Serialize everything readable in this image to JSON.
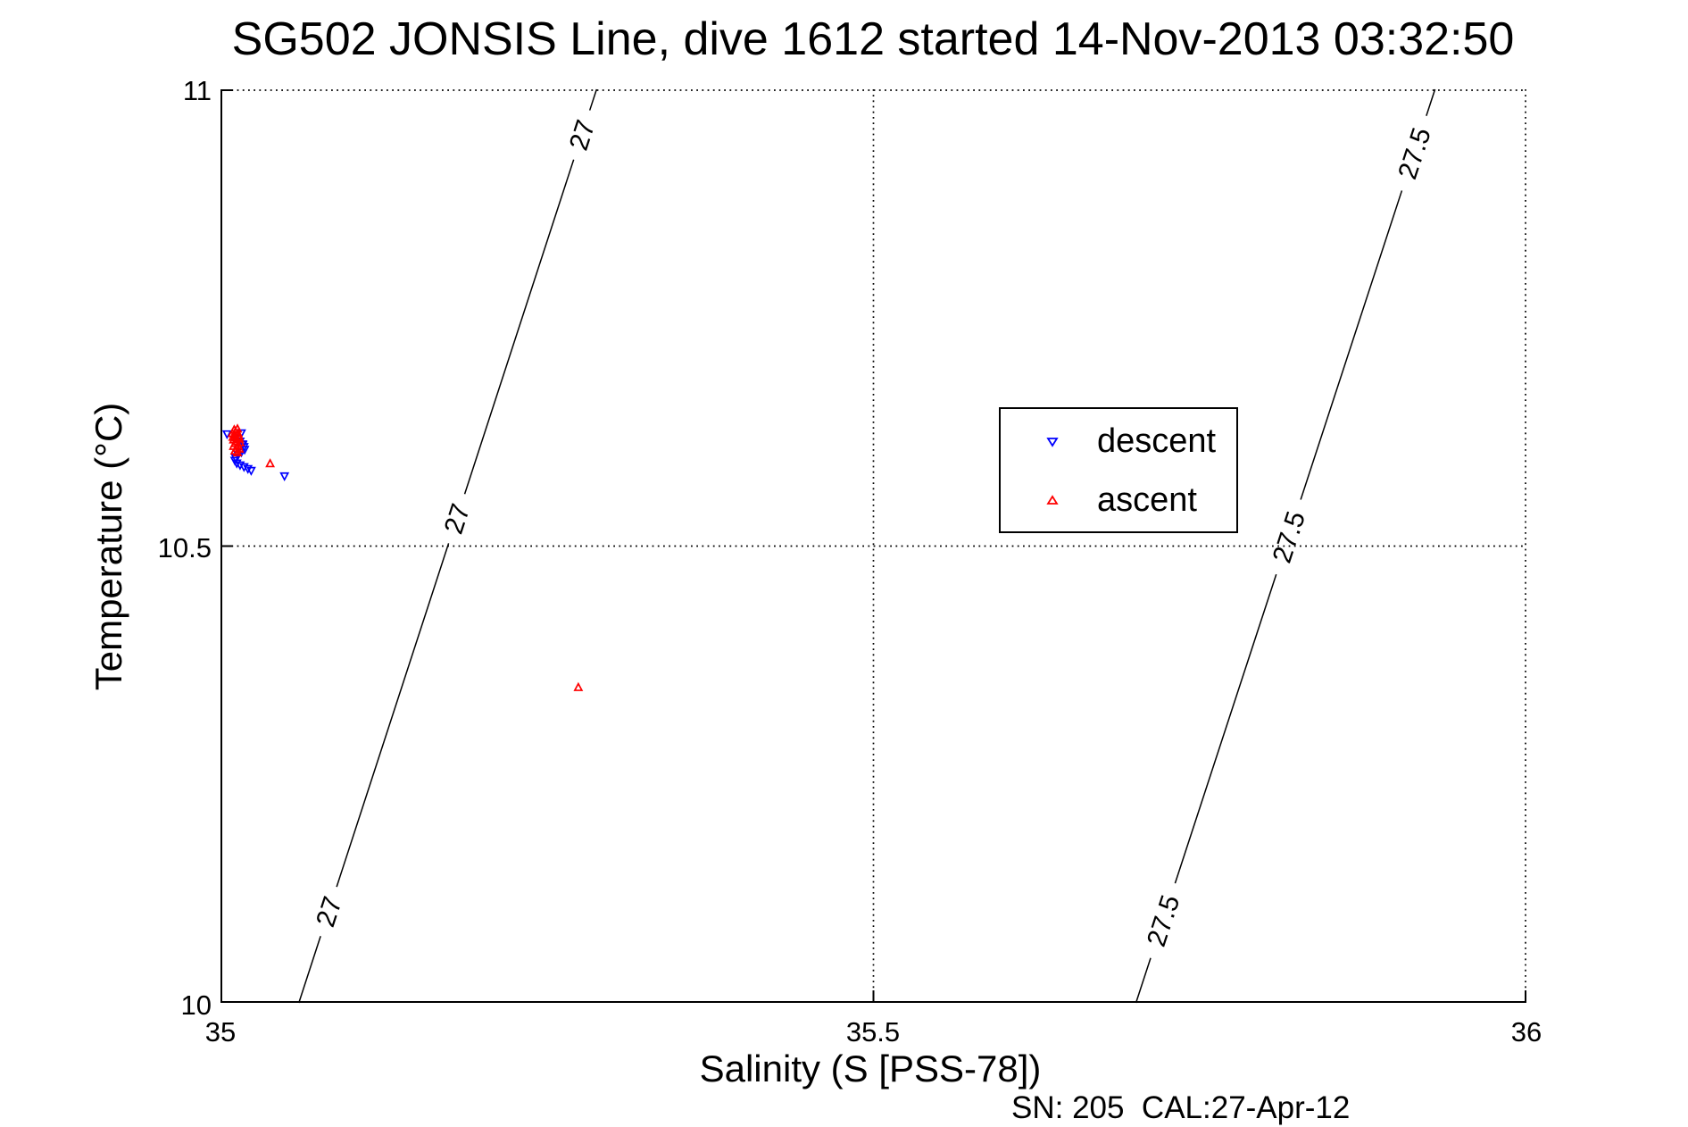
{
  "chart_data": {
    "type": "scatter",
    "title": "SG502 JONSIS Line, dive 1612 started 14-Nov-2013 03:32:50",
    "xlabel": "Salinity (S [PSS-78])",
    "ylabel": "Temperature (°C)",
    "footnote": "SN: 205  CAL:27-Apr-12",
    "xlim": [
      35,
      36
    ],
    "ylim": [
      10,
      11
    ],
    "xticks": [
      {
        "value": 35,
        "label": "35"
      },
      {
        "value": 35.5,
        "label": "35.5"
      },
      {
        "value": 36,
        "label": "36"
      }
    ],
    "yticks": [
      {
        "value": 10,
        "label": "10"
      },
      {
        "value": 10.5,
        "label": "10.5"
      },
      {
        "value": 11,
        "label": "11"
      }
    ],
    "grid": "dotted",
    "axis_color": "#000000",
    "background_color": "#ffffff",
    "legend": {
      "position": "center-right",
      "border_color": "#000000"
    },
    "series": [
      {
        "name": "descent",
        "marker": "triangle-down",
        "color": "#0000ff",
        "points": [
          [
            35.005,
            10.623
          ],
          [
            35.0115,
            10.621
          ],
          [
            35.0135,
            10.618
          ],
          [
            35.015,
            10.615
          ],
          [
            35.016,
            10.624
          ],
          [
            35.017,
            10.612
          ],
          [
            35.018,
            10.609
          ],
          [
            35.0185,
            10.606
          ],
          [
            35.017,
            10.611
          ],
          [
            35.016,
            10.603
          ],
          [
            35.0135,
            10.6
          ],
          [
            35.0115,
            10.597
          ],
          [
            35.011,
            10.594
          ],
          [
            35.0125,
            10.591
          ],
          [
            35.015,
            10.589
          ],
          [
            35.018,
            10.587
          ],
          [
            35.021,
            10.585
          ],
          [
            35.0235,
            10.583
          ],
          [
            35.049,
            10.577
          ]
        ]
      },
      {
        "name": "ascent",
        "marker": "triangle-up",
        "color": "#ff0000",
        "points": [
          [
            35.0105,
            10.627
          ],
          [
            35.013,
            10.628
          ],
          [
            35.0115,
            10.625
          ],
          [
            35.009,
            10.623
          ],
          [
            35.0135,
            10.623
          ],
          [
            35.011,
            10.621
          ],
          [
            35.014,
            10.62
          ],
          [
            35.0095,
            10.619
          ],
          [
            35.012,
            10.618
          ],
          [
            35.0145,
            10.617
          ],
          [
            35.01,
            10.616
          ],
          [
            35.0125,
            10.614
          ],
          [
            35.015,
            10.613
          ],
          [
            35.011,
            10.612
          ],
          [
            35.0135,
            10.61
          ],
          [
            35.01,
            10.609
          ],
          [
            35.0125,
            10.607
          ],
          [
            35.0145,
            10.606
          ],
          [
            35.011,
            10.604
          ],
          [
            35.013,
            10.602
          ],
          [
            35.038,
            10.59
          ],
          [
            35.274,
            10.345
          ]
        ]
      }
    ],
    "contours": [
      {
        "level": "27",
        "line": [
          [
            35.06,
            10.0
          ],
          [
            35.288,
            11.0
          ]
        ],
        "label_temps": [
          10.1,
          10.53,
          10.95
        ]
      },
      {
        "level": "27.5",
        "line": [
          [
            35.701,
            10.0
          ],
          [
            35.93,
            11.0
          ]
        ],
        "label_temps": [
          10.09,
          10.51,
          10.93
        ]
      }
    ]
  }
}
